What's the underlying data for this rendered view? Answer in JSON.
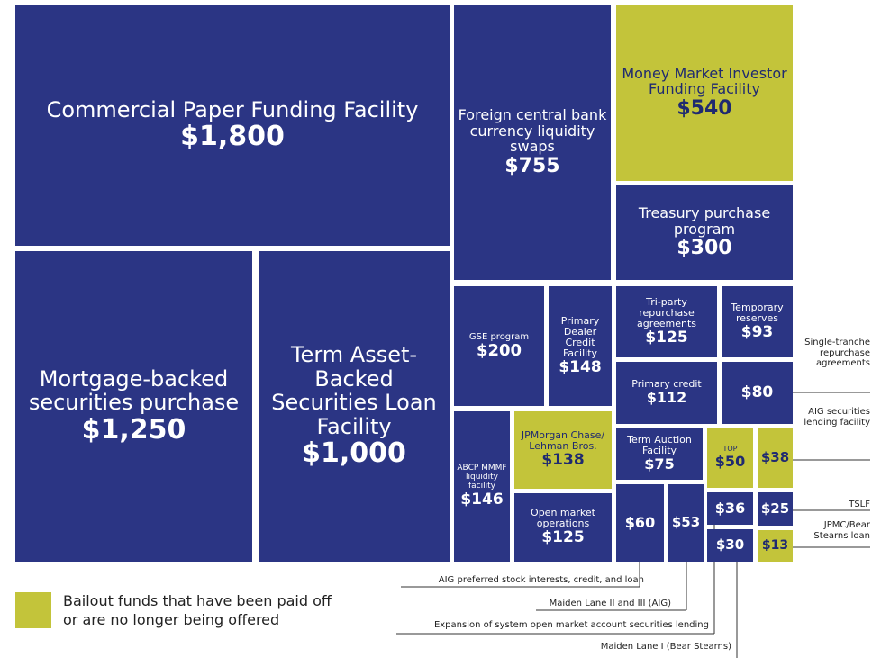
{
  "chart_data": {
    "type": "treemap",
    "items": [
      {
        "name": "Commercial Paper Funding Facility",
        "value": 1800,
        "value_label": "$1,800",
        "color": "#2b3584"
      },
      {
        "name": "Foreign central bank currency liquidity swaps",
        "value": 755,
        "value_label": "$755",
        "color": "#2b3584"
      },
      {
        "name": "Money Market Investor Funding Facility",
        "value": 540,
        "value_label": "$540",
        "color": "#c3c43a"
      },
      {
        "name": "Treasury purchase program",
        "value": 300,
        "value_label": "$300",
        "color": "#2b3584"
      },
      {
        "name": "Mortgage-backed securities purchase",
        "value": 1250,
        "value_label": "$1,250",
        "color": "#2b3584"
      },
      {
        "name": "Term Asset-Backed Securities Loan Facility",
        "value": 1000,
        "value_label": "$1,000",
        "color": "#2b3584"
      },
      {
        "name": "GSE program",
        "value": 200,
        "value_label": "$200",
        "color": "#2b3584"
      },
      {
        "name": "Primary Dealer Credit Facility",
        "value": 148,
        "value_label": "$148",
        "color": "#2b3584"
      },
      {
        "name": "Tri-party repurchase agreements",
        "value": 125,
        "value_label": "$125",
        "color": "#2b3584"
      },
      {
        "name": "Temporary reserves",
        "value": 93,
        "value_label": "$93",
        "color": "#2b3584"
      },
      {
        "name": "Primary credit",
        "value": 112,
        "value_label": "$112",
        "color": "#2b3584"
      },
      {
        "name": "Single-tranche repurchase agreements",
        "value": 80,
        "value_label": "$80",
        "color": "#2b3584"
      },
      {
        "name": "ABCP MMMF liquidity facility",
        "value": 146,
        "value_label": "$146",
        "color": "#2b3584"
      },
      {
        "name": "JPMorgan Chase/ Lehman Bros.",
        "value": 138,
        "value_label": "$138",
        "color": "#c3c43a"
      },
      {
        "name": "Open market operations",
        "value": 125,
        "value_label": "$125",
        "color": "#2b3584"
      },
      {
        "name": "Term Auction Facility",
        "value": 75,
        "value_label": "$75",
        "color": "#2b3584"
      },
      {
        "name": "TOP",
        "value": 50,
        "value_label": "$50",
        "color": "#c3c43a"
      },
      {
        "name": "AIG securities lending facility",
        "value": 38,
        "value_label": "$38",
        "color": "#c3c43a"
      },
      {
        "name": "AIG preferred stock interests, credit, and loan",
        "value": 60,
        "value_label": "$60",
        "color": "#2b3584"
      },
      {
        "name": "Maiden Lane II and III (AIG)",
        "value": 53,
        "value_label": "$53",
        "color": "#2b3584"
      },
      {
        "name": "Expansion of system open market account securities lending",
        "value": 36,
        "value_label": "$36",
        "color": "#2b3584"
      },
      {
        "name": "TSLF",
        "value": 25,
        "value_label": "$25",
        "color": "#2b3584"
      },
      {
        "name": "Maiden Lane I (Bear Stearns)",
        "value": 30,
        "value_label": "$30",
        "color": "#2b3584"
      },
      {
        "name": "JPMC/Bear Stearns loan",
        "value": 13,
        "value_label": "$13",
        "color": "#c3c43a"
      }
    ],
    "legend": {
      "label": "Bailout funds that have been paid off or are no longer being offered",
      "color": "#c3c43a"
    }
  }
}
